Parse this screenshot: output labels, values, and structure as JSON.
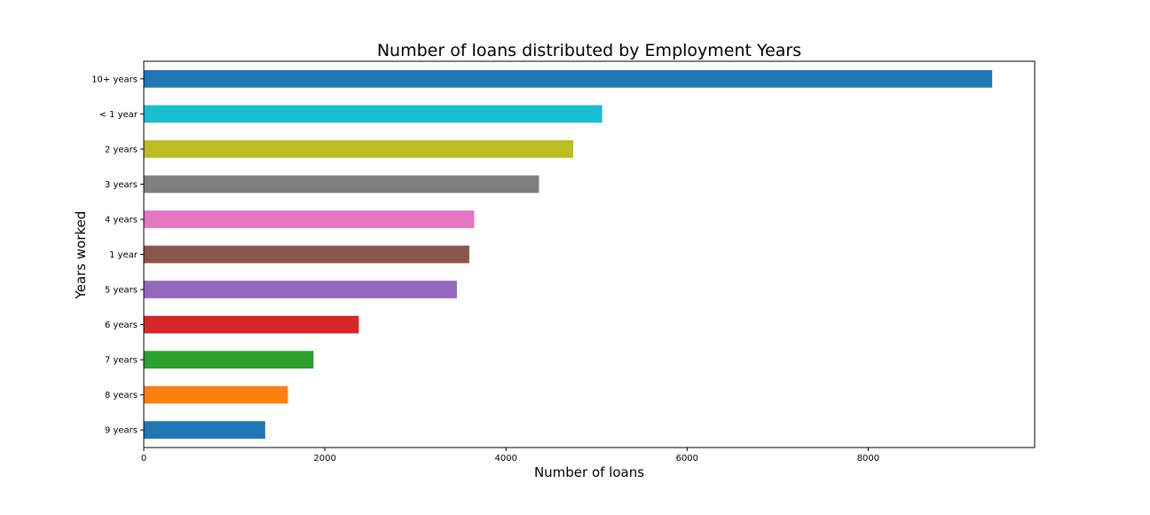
{
  "chart_data": {
    "type": "bar",
    "orientation": "horizontal",
    "title": "Number of loans distributed by Employment Years",
    "xlabel": "Number of loans",
    "ylabel": "Years worked",
    "categories": [
      "10+ years",
      "< 1 year",
      "2 years",
      "3 years",
      "4 years",
      "1 year",
      "5 years",
      "6 years",
      "7 years",
      "8 years",
      "9 years"
    ],
    "values": [
      9369,
      5062,
      4743,
      4365,
      3649,
      3595,
      3458,
      2375,
      1875,
      1592,
      1341
    ],
    "colors": [
      "#1f77b4",
      "#17becf",
      "#bcbd22",
      "#7f7f7f",
      "#e377c2",
      "#8c564b",
      "#9467bd",
      "#d62728",
      "#2ca02c",
      "#ff7f0e",
      "#1f77b4"
    ],
    "xlim": [
      0,
      9838
    ],
    "xticks": [
      0,
      2000,
      4000,
      6000,
      8000
    ],
    "xtick_labels": [
      "0",
      "2000",
      "4000",
      "6000",
      "8000"
    ],
    "grid": false,
    "legend": "none"
  }
}
